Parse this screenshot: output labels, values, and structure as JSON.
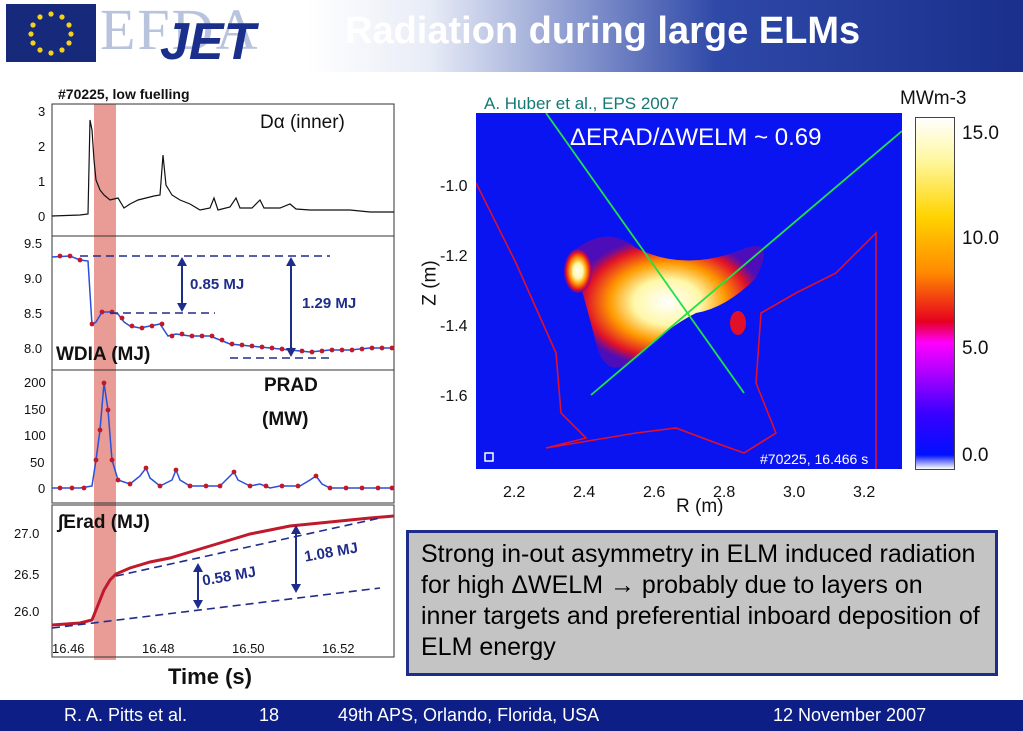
{
  "header": {
    "logo_efda": "EFDA",
    "logo_jet": "JET",
    "title": "Radiation during large ELMs"
  },
  "left_panels": {
    "shot_label": "#70225, low fuelling",
    "time_label": "Time (s)",
    "x_ticks": [
      "16.46",
      "16.48",
      "16.50",
      "16.52"
    ],
    "dalpha": {
      "label": "Dα (inner)",
      "y_ticks": [
        "0",
        "1",
        "2",
        "3"
      ]
    },
    "wdia": {
      "label": "WDIA (MJ)",
      "y_ticks": [
        "8.0",
        "8.5",
        "9.0",
        "9.5"
      ],
      "ann1": "0.85 MJ",
      "ann2": "1.29 MJ"
    },
    "prad": {
      "label_main": "PRAD",
      "label_unit": "(MW)",
      "y_ticks": [
        "0",
        "50",
        "100",
        "150",
        "200"
      ]
    },
    "erad": {
      "label": "∫Erad (MJ)",
      "y_ticks": [
        "26.0",
        "26.5",
        "27.0"
      ],
      "ann1": "0.58 MJ",
      "ann2": "1.08 MJ"
    }
  },
  "right_plot": {
    "citation": "A. Huber et al., EPS 2007",
    "formula": "ΔERAD/ΔWELM ~ 0.69",
    "inset_label": "#70225, 16.466 s",
    "xlabel": "R (m)",
    "ylabel": "Z (m)",
    "x_ticks": [
      "2.2",
      "2.4",
      "2.6",
      "2.8",
      "3.0",
      "3.2"
    ],
    "y_ticks": [
      "-1.0",
      "-1.2",
      "-1.4",
      "-1.6"
    ],
    "colorbar_unit": "MWm-3",
    "colorbar_ticks": [
      "15.0",
      "10.0",
      "5.0",
      "0.0"
    ]
  },
  "note": {
    "text": "Strong in-out asymmetry in ELM induced radiation for high ΔWELM → probably due to layers on inner targets and preferential inboard deposition of ELM energy"
  },
  "footer": {
    "author": "R. A. Pitts et al.",
    "page": "18",
    "conference": "49th APS, Orlando, Florida, USA",
    "date": "12 November 2007"
  },
  "colors": {
    "accent_blue": "#1f2d8a",
    "data_red": "#c0192c",
    "highlight": "#e58a84"
  }
}
